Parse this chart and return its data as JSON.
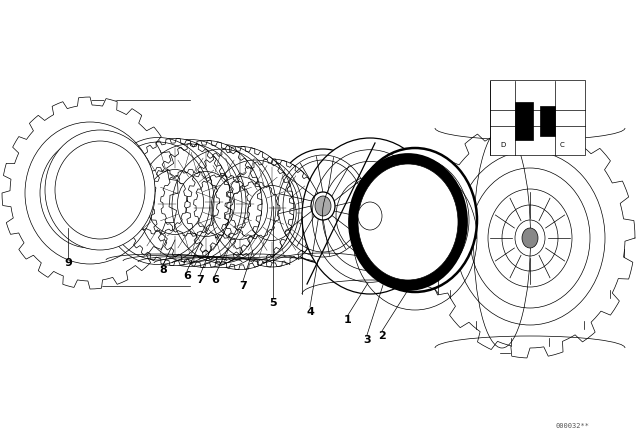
{
  "bg_color": "#ffffff",
  "line_color": "#000000",
  "fig_width": 6.4,
  "fig_height": 4.48,
  "dpi": 100,
  "watermark": "000032**",
  "lw_thin": 0.5,
  "lw_med": 0.9,
  "lw_thick": 1.8
}
